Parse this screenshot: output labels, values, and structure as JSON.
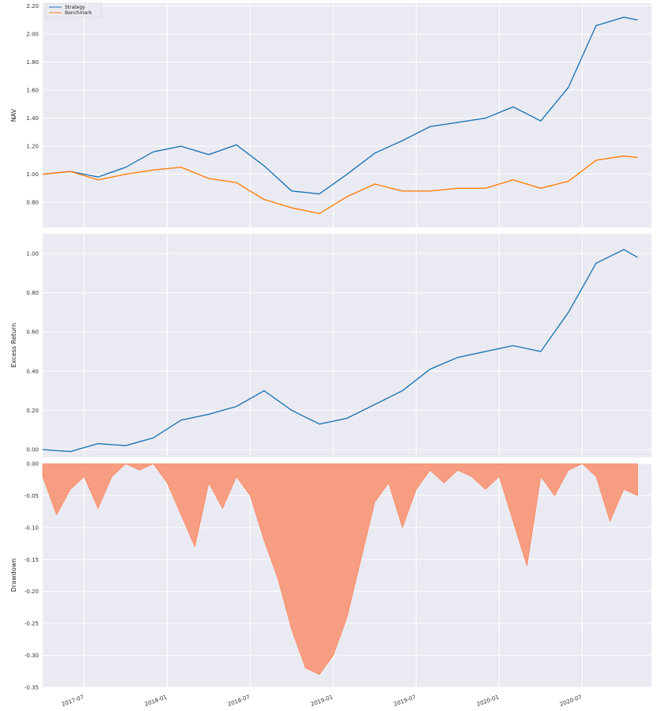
{
  "chart_data": [
    {
      "type": "line",
      "panel": "nav",
      "ylabel": "NAV",
      "ylim": [
        0.62,
        2.22
      ],
      "yticks": [
        "0.80",
        "1.00",
        "1.20",
        "1.40",
        "1.60",
        "1.80",
        "2.00",
        "2.20"
      ],
      "legend": {
        "placement": "top-left",
        "entries": [
          "Strategy",
          "Benchmark"
        ]
      },
      "x": [
        "2017-04",
        "2017-06",
        "2017-08",
        "2017-10",
        "2017-12",
        "2018-02",
        "2018-04",
        "2018-06",
        "2018-08",
        "2018-10",
        "2018-12",
        "2019-02",
        "2019-04",
        "2019-06",
        "2019-08",
        "2019-10",
        "2019-12",
        "2020-02",
        "2020-04",
        "2020-06",
        "2020-08",
        "2020-10",
        "2020-11"
      ],
      "series": [
        {
          "name": "Strategy",
          "color": "#1f77b4",
          "values": [
            1.0,
            1.02,
            0.98,
            1.05,
            1.16,
            1.2,
            1.14,
            1.21,
            1.06,
            0.88,
            0.86,
            1.0,
            1.15,
            1.24,
            1.34,
            1.37,
            1.4,
            1.48,
            1.38,
            1.62,
            2.06,
            2.12,
            2.1
          ]
        },
        {
          "name": "Benchmark",
          "color": "#ff7f0e",
          "values": [
            1.0,
            1.02,
            0.96,
            1.0,
            1.03,
            1.05,
            0.97,
            0.94,
            0.82,
            0.76,
            0.72,
            0.84,
            0.93,
            0.88,
            0.88,
            0.9,
            0.9,
            0.96,
            0.9,
            0.95,
            1.1,
            1.13,
            1.12
          ]
        }
      ]
    },
    {
      "type": "line",
      "panel": "excess",
      "ylabel": "Excess Return",
      "ylim": [
        -0.04,
        1.1
      ],
      "yticks": [
        "0.00",
        "0.20",
        "0.40",
        "0.60",
        "0.80",
        "1.00"
      ],
      "x": [
        "2017-04",
        "2017-06",
        "2017-08",
        "2017-10",
        "2017-12",
        "2018-02",
        "2018-04",
        "2018-06",
        "2018-08",
        "2018-10",
        "2018-12",
        "2019-02",
        "2019-04",
        "2019-06",
        "2019-08",
        "2019-10",
        "2019-12",
        "2020-02",
        "2020-04",
        "2020-06",
        "2020-08",
        "2020-10",
        "2020-11"
      ],
      "series": [
        {
          "name": "Excess Return",
          "color": "#1f77b4",
          "values": [
            0.0,
            -0.01,
            0.03,
            0.02,
            0.06,
            0.15,
            0.18,
            0.22,
            0.3,
            0.2,
            0.13,
            0.16,
            0.23,
            0.3,
            0.41,
            0.47,
            0.5,
            0.53,
            0.5,
            0.7,
            0.95,
            1.02,
            0.98
          ]
        }
      ]
    },
    {
      "type": "area",
      "panel": "drawdown",
      "ylabel": "Drawdown",
      "ylim": [
        -0.35,
        0.0
      ],
      "yticks": [
        "0.00",
        "-0.05",
        "-0.10",
        "-0.15",
        "-0.20",
        "-0.25",
        "-0.30",
        "-0.35"
      ],
      "xticks": [
        "2017-07",
        "2018-01",
        "2018-07",
        "2019-01",
        "2019-07",
        "2020-01",
        "2020-07"
      ],
      "x": [
        "2017-04",
        "2017-05",
        "2017-06",
        "2017-07",
        "2017-08",
        "2017-09",
        "2017-10",
        "2017-11",
        "2017-12",
        "2018-01",
        "2018-02",
        "2018-03",
        "2018-04",
        "2018-05",
        "2018-06",
        "2018-07",
        "2018-08",
        "2018-09",
        "2018-10",
        "2018-11",
        "2018-12",
        "2019-01",
        "2019-02",
        "2019-03",
        "2019-04",
        "2019-05",
        "2019-06",
        "2019-07",
        "2019-08",
        "2019-09",
        "2019-10",
        "2019-11",
        "2019-12",
        "2020-01",
        "2020-02",
        "2020-03",
        "2020-04",
        "2020-05",
        "2020-06",
        "2020-07",
        "2020-08",
        "2020-09",
        "2020-10",
        "2020-11"
      ],
      "series": [
        {
          "name": "Drawdown",
          "color": "#fa8a64",
          "values": [
            -0.02,
            -0.08,
            -0.04,
            -0.02,
            -0.07,
            -0.02,
            0.0,
            -0.01,
            0.0,
            -0.03,
            -0.08,
            -0.13,
            -0.03,
            -0.07,
            -0.02,
            -0.05,
            -0.12,
            -0.18,
            -0.26,
            -0.32,
            -0.33,
            -0.3,
            -0.24,
            -0.15,
            -0.06,
            -0.03,
            -0.1,
            -0.04,
            -0.01,
            -0.03,
            -0.01,
            -0.02,
            -0.04,
            -0.02,
            -0.09,
            -0.16,
            -0.02,
            -0.05,
            -0.01,
            0.0,
            -0.02,
            -0.09,
            -0.04,
            -0.05
          ]
        }
      ]
    }
  ]
}
